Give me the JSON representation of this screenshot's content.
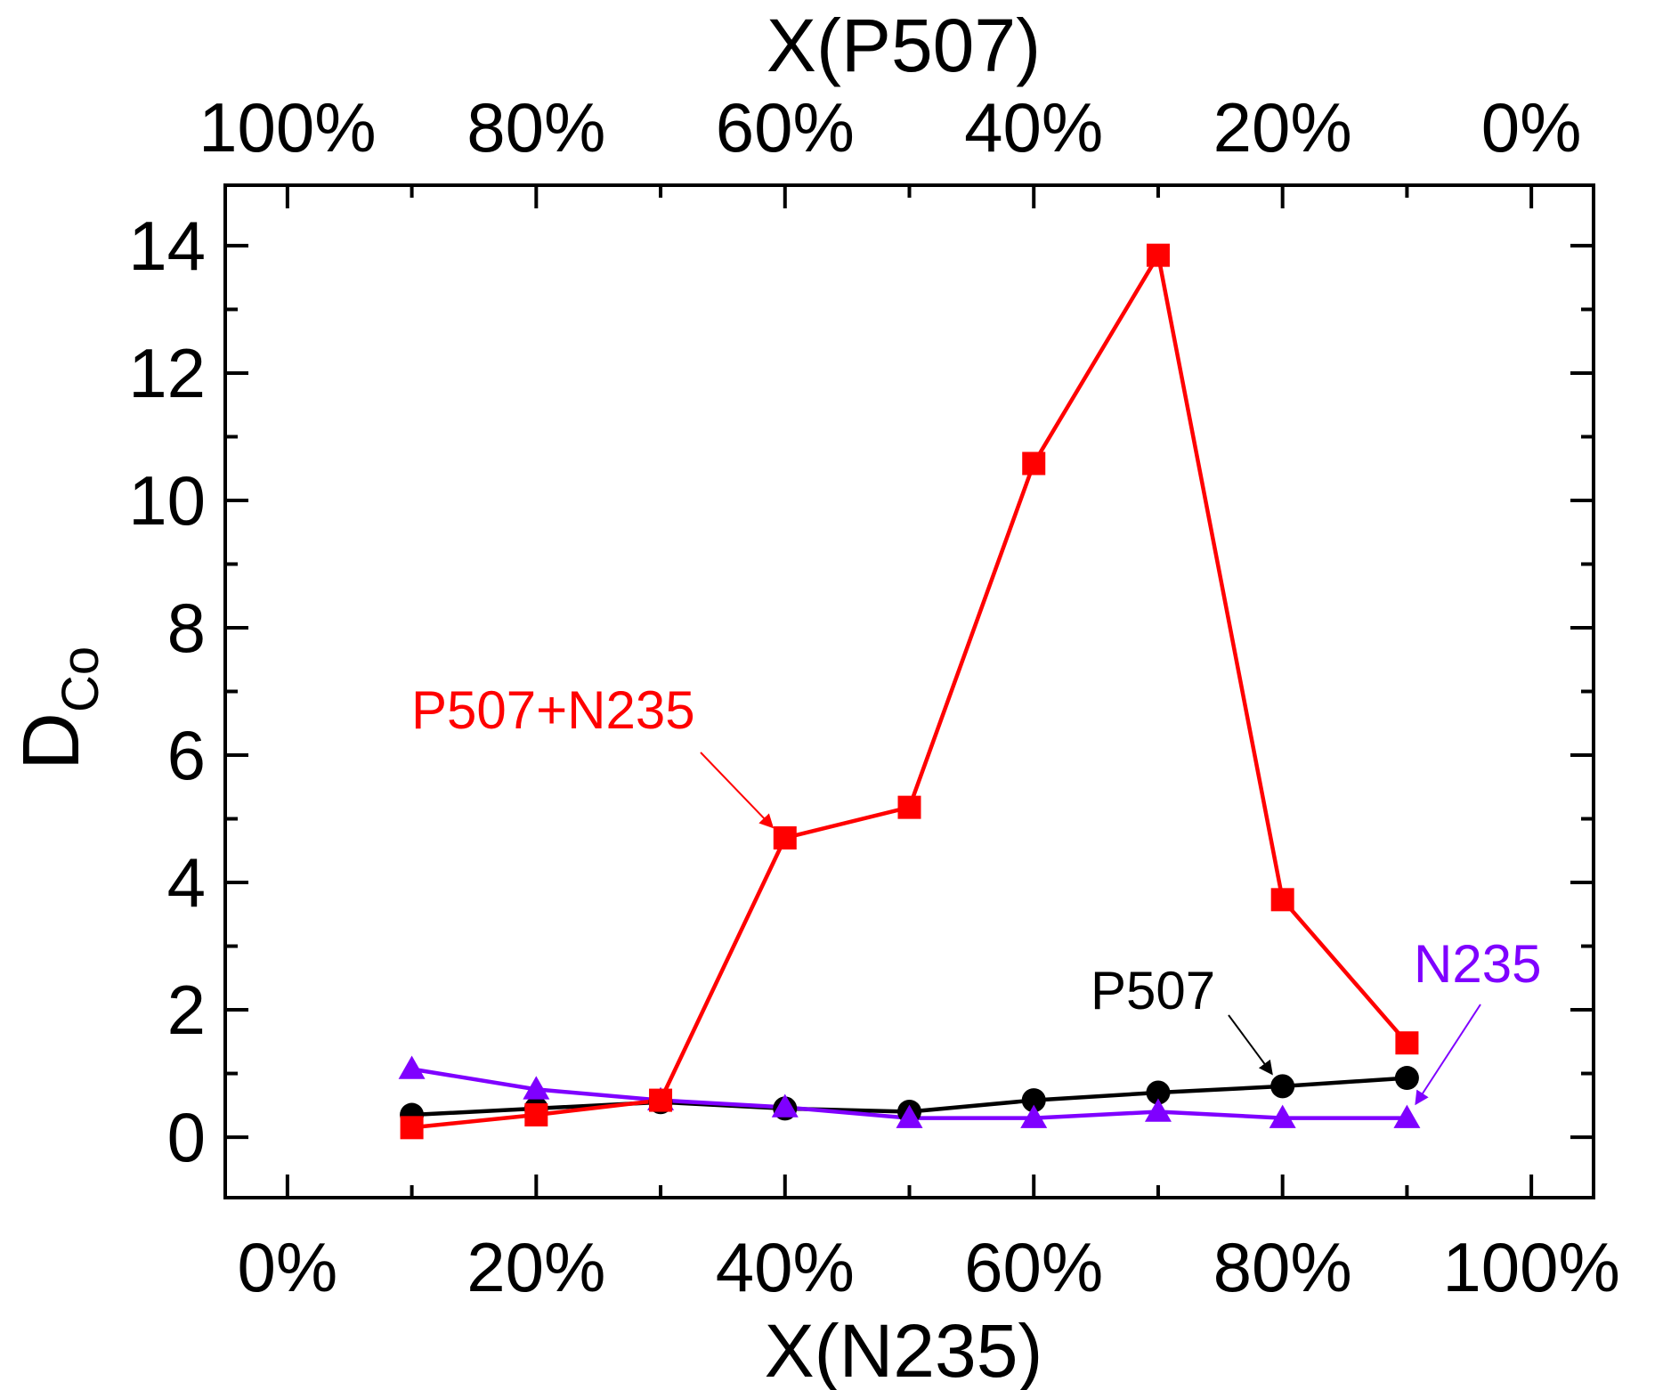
{
  "chart_data": {
    "type": "line",
    "title": "",
    "xlabel": "X(N235)",
    "x2label": "X(P507)",
    "ylabel_main": "D",
    "ylabel_sub": "Co",
    "xlim": [
      -0.05,
      1.05
    ],
    "ylim": [
      -0.95,
      14.95
    ],
    "x_ticks": [
      0,
      0.2,
      0.4,
      0.6,
      0.8,
      1.0
    ],
    "x_ticklabels": [
      "0%",
      "20%",
      "40%",
      "60%",
      "80%",
      "100%"
    ],
    "x2_ticklabels": [
      "100%",
      "80%",
      "60%",
      "40%",
      "20%",
      "0%"
    ],
    "y_ticks": [
      0,
      2,
      4,
      6,
      8,
      10,
      12,
      14
    ],
    "y_ticklabels": [
      "0",
      "2",
      "4",
      "6",
      "8",
      "10",
      "12",
      "14"
    ],
    "x": [
      0.1,
      0.2,
      0.3,
      0.4,
      0.5,
      0.6,
      0.7,
      0.8,
      0.9
    ],
    "series": [
      {
        "name": "P507",
        "marker": "circle",
        "color": "#000000",
        "values": [
          0.35,
          0.45,
          0.55,
          0.45,
          0.4,
          0.58,
          0.7,
          0.8,
          0.93
        ]
      },
      {
        "name": "N235",
        "marker": "triangle",
        "color": "#7f00ff",
        "values": [
          1.07,
          0.75,
          0.58,
          0.47,
          0.3,
          0.3,
          0.4,
          0.3,
          0.3
        ]
      },
      {
        "name": "P507+N235",
        "marker": "square",
        "color": "#ff0000",
        "values": [
          0.15,
          0.35,
          0.58,
          4.7,
          5.18,
          10.58,
          13.85,
          3.73,
          1.48
        ]
      }
    ],
    "annotations": [
      {
        "text": "P507+N235",
        "color": "#ff0000",
        "target_series": "P507+N235",
        "target_x": 0.4
      },
      {
        "text": "P507",
        "color": "#000000",
        "target_series": "P507",
        "target_x": 0.8
      },
      {
        "text": "N235",
        "color": "#7f00ff",
        "target_series": "N235",
        "target_x": 0.9
      }
    ]
  }
}
